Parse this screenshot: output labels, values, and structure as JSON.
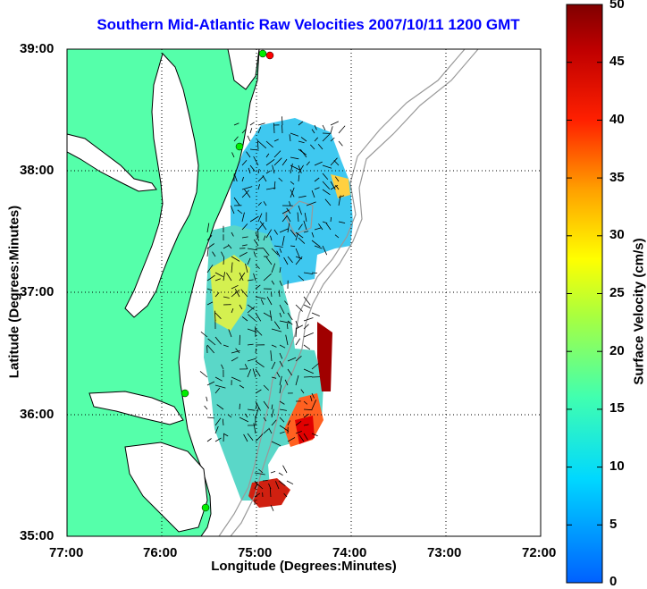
{
  "title": "Southern Mid-Atlantic Raw Velocities 2007/10/11 1200 GMT",
  "axes": {
    "xlabel": "Longitude (Degrees:Minutes)",
    "ylabel": "Latitude (Degrees:Minutes)",
    "x_ticks": [
      "77:00",
      "76:00",
      "75:00",
      "74:00",
      "73:00",
      "72:00"
    ],
    "y_ticks": [
      "39:00",
      "38:00",
      "37:00",
      "36:00",
      "35:00"
    ],
    "xlim": [
      -77,
      -72
    ],
    "ylim": [
      35,
      39
    ],
    "grid": "dotted"
  },
  "colorbar": {
    "label": "Surface Velocity (cm/s)",
    "ticks": [
      "50",
      "45",
      "40",
      "35",
      "30",
      "25",
      "20",
      "15",
      "10",
      "5",
      "0"
    ],
    "range": [
      0,
      50
    ],
    "colors": [
      "#0000ff",
      "#00ffff",
      "#80ff80",
      "#ffff00",
      "#ff8000",
      "#ff0000",
      "#800000"
    ]
  },
  "map": {
    "land_color": "#55ffaa",
    "coast_color": "#000000",
    "bathymetry_color": "#999999"
  }
}
